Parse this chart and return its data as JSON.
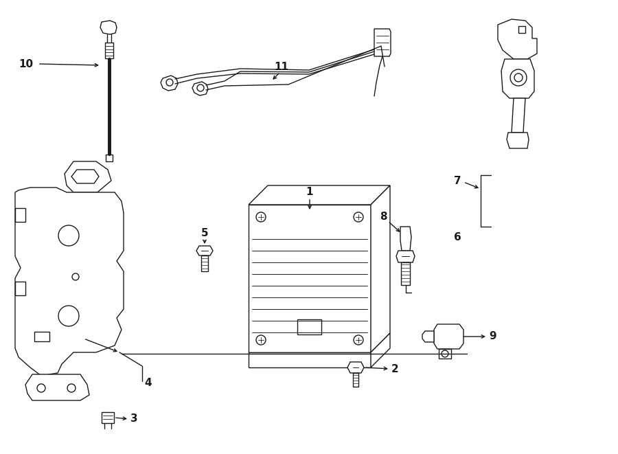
{
  "background_color": "#ffffff",
  "line_color": "#1a1a1a",
  "lw": 1.0,
  "fig_w": 9.0,
  "fig_h": 6.61,
  "dpi": 100
}
